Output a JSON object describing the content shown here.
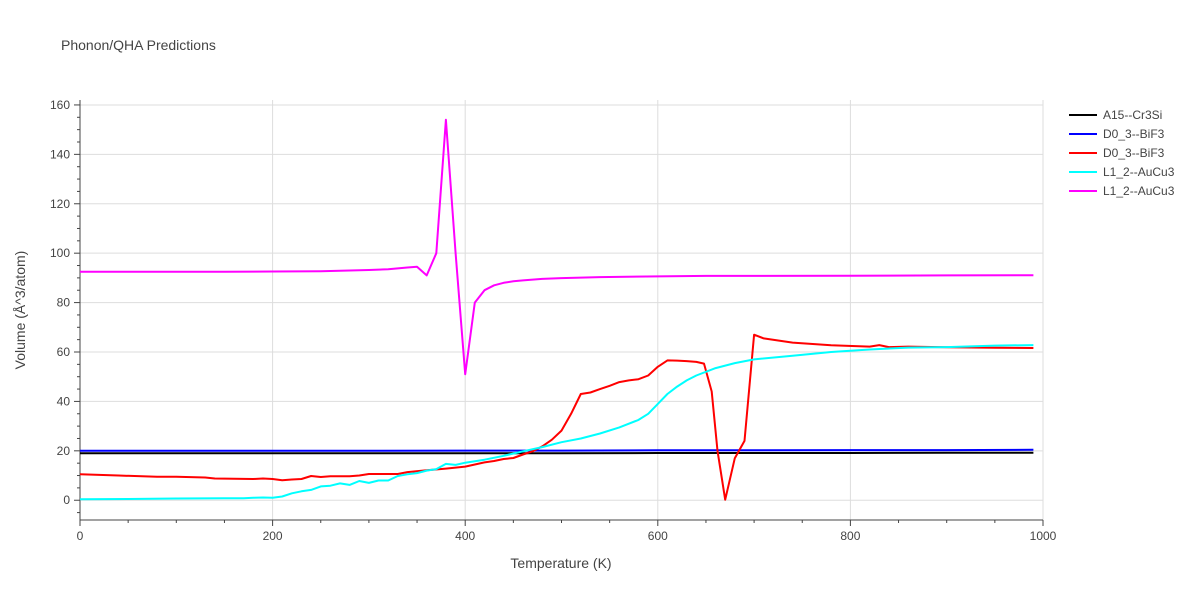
{
  "chart_data": {
    "type": "line",
    "title": "Phonon/QHA Predictions",
    "xlabel": "Temperature (K)",
    "ylabel": "Volume (Å^3/atom)",
    "xlim": [
      0,
      1000
    ],
    "ylim": [
      -8,
      162
    ],
    "xticks": [
      0,
      200,
      400,
      600,
      800,
      1000
    ],
    "yticks": [
      0,
      20,
      40,
      60,
      80,
      100,
      120,
      140,
      160
    ],
    "grid": true,
    "legend_position": "right",
    "series": [
      {
        "name": "A15--Cr3Si",
        "color": "#000000",
        "x": [
          0,
          100,
          200,
          300,
          400,
          500,
          600,
          700,
          800,
          900,
          990
        ],
        "y": [
          19.0,
          19.0,
          19.0,
          19.0,
          19.0,
          19.0,
          19.1,
          19.1,
          19.1,
          19.2,
          19.2
        ]
      },
      {
        "name": "D0_3--BiF3",
        "color": "#0000ff",
        "x": [
          0,
          100,
          200,
          300,
          400,
          500,
          600,
          700,
          800,
          900,
          990
        ],
        "y": [
          20.0,
          20.0,
          20.0,
          20.0,
          20.1,
          20.1,
          20.2,
          20.2,
          20.3,
          20.3,
          20.4
        ]
      },
      {
        "name": "D0_3--BiF3",
        "color": "#ff0000",
        "x": [
          0,
          40,
          80,
          100,
          130,
          140,
          160,
          180,
          190,
          200,
          210,
          220,
          230,
          240,
          250,
          260,
          280,
          290,
          300,
          320,
          330,
          340,
          360,
          380,
          400,
          420,
          430,
          440,
          450,
          460,
          470,
          480,
          490,
          500,
          510,
          520,
          530,
          540,
          550,
          560,
          570,
          580,
          590,
          600,
          610,
          620,
          630,
          640,
          648,
          656,
          662,
          670,
          680,
          690,
          700,
          710,
          740,
          780,
          820,
          830,
          840,
          860,
          900,
          950,
          990
        ],
        "y": [
          10.5,
          10.0,
          9.5,
          9.5,
          9.2,
          8.8,
          8.7,
          8.6,
          8.8,
          8.6,
          8.1,
          8.4,
          8.6,
          9.8,
          9.4,
          9.7,
          9.7,
          10.0,
          10.6,
          10.6,
          10.6,
          11.4,
          12.1,
          12.8,
          13.6,
          15.3,
          15.9,
          16.7,
          17.1,
          18.5,
          19.8,
          21.8,
          24.5,
          28.2,
          35.0,
          43.0,
          43.6,
          45.0,
          46.3,
          47.8,
          48.5,
          49.0,
          50.5,
          54.0,
          56.6,
          56.5,
          56.3,
          56.0,
          55.3,
          44.0,
          20.0,
          0.2,
          17.0,
          24.0,
          67.0,
          65.5,
          63.8,
          62.7,
          62.2,
          62.8,
          62.0,
          62.2,
          61.9,
          61.7,
          61.6
        ]
      },
      {
        "name": "L1_2--AuCu3",
        "color": "#00ffff",
        "x": [
          0,
          50,
          100,
          150,
          170,
          180,
          190,
          200,
          210,
          220,
          230,
          240,
          250,
          260,
          270,
          280,
          290,
          300,
          310,
          320,
          330,
          340,
          350,
          360,
          370,
          380,
          390,
          400,
          420,
          440,
          460,
          480,
          500,
          520,
          540,
          560,
          580,
          590,
          600,
          610,
          620,
          630,
          640,
          660,
          680,
          700,
          740,
          780,
          820,
          860,
          900,
          950,
          990
        ],
        "y": [
          0.4,
          0.5,
          0.7,
          0.8,
          0.8,
          1.0,
          1.1,
          1.0,
          1.5,
          2.8,
          3.6,
          4.2,
          5.6,
          5.9,
          6.8,
          6.2,
          7.8,
          7.0,
          8.0,
          8.0,
          9.8,
          10.5,
          11.0,
          12.0,
          12.6,
          14.7,
          14.3,
          15.2,
          16.4,
          18.0,
          19.8,
          21.5,
          23.5,
          25.0,
          27.0,
          29.5,
          32.5,
          35.0,
          39.0,
          43.0,
          46.0,
          48.5,
          50.5,
          53.5,
          55.5,
          57.0,
          58.5,
          60.0,
          61.0,
          61.8,
          62.0,
          62.6,
          62.8
        ]
      },
      {
        "name": "L1_2--AuCu3",
        "color": "#ff00ff",
        "x": [
          0,
          50,
          100,
          150,
          200,
          250,
          300,
          320,
          340,
          350,
          360,
          370,
          380,
          390,
          400,
          410,
          420,
          430,
          440,
          450,
          460,
          480,
          500,
          540,
          600,
          650,
          700,
          800,
          900,
          990
        ],
        "y": [
          92.5,
          92.5,
          92.5,
          92.5,
          92.6,
          92.7,
          93.2,
          93.5,
          94.2,
          94.5,
          91.0,
          100.0,
          154.0,
          100.0,
          51.0,
          80.0,
          85.0,
          87.0,
          88.0,
          88.6,
          89.0,
          89.6,
          89.9,
          90.3,
          90.6,
          90.8,
          90.8,
          90.9,
          91.0,
          91.1
        ]
      }
    ]
  }
}
